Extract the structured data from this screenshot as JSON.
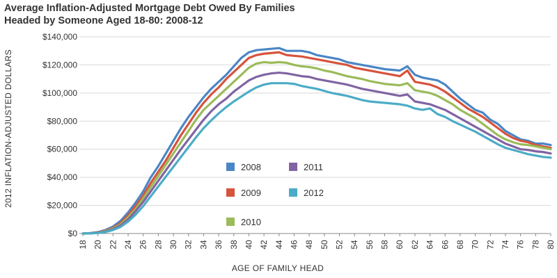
{
  "title_line1": "Average Inflation-Adjusted Mortgage Debt Owed By Families",
  "title_line2": "Headed by Someone Aged 18-80: 2008-12",
  "chart_data": {
    "type": "line",
    "title": "Average Inflation-Adjusted Mortgage Debt Owed By Families Headed by Someone Aged 18-80: 2008-12",
    "xlabel": "AGE OF FAMILY HEAD",
    "ylabel": "2012 INFLATION-ADJUSTED DOLLARS",
    "xlim": [
      18,
      80
    ],
    "ylim": [
      0,
      140000
    ],
    "x_ticks": [
      "18",
      "20",
      "22",
      "24",
      "26",
      "28",
      "30",
      "32",
      "34",
      "36",
      "38",
      "40",
      "42",
      "44",
      "46",
      "48",
      "50",
      "52",
      "54",
      "56",
      "58",
      "60",
      "62",
      "64",
      "66",
      "68",
      "70",
      "72",
      "74",
      "76",
      "78",
      "80"
    ],
    "y_ticks": [
      {
        "value": 0,
        "label": "$0"
      },
      {
        "value": 20000,
        "label": "$20,000"
      },
      {
        "value": 40000,
        "label": "$40,000"
      },
      {
        "value": 60000,
        "label": "$60,000"
      },
      {
        "value": 80000,
        "label": "$80,000"
      },
      {
        "value": 100000,
        "label": "$100,000"
      },
      {
        "value": 120000,
        "label": "$120,000"
      },
      {
        "value": 140000,
        "label": "$140,000"
      }
    ],
    "grid": "horizontal",
    "legend_position": "bottom-center",
    "x": [
      18,
      19,
      20,
      21,
      22,
      23,
      24,
      25,
      26,
      27,
      28,
      29,
      30,
      31,
      32,
      33,
      34,
      35,
      36,
      37,
      38,
      39,
      40,
      41,
      42,
      43,
      44,
      45,
      46,
      47,
      48,
      49,
      50,
      51,
      52,
      53,
      54,
      55,
      56,
      57,
      58,
      59,
      60,
      61,
      62,
      63,
      64,
      65,
      66,
      67,
      68,
      69,
      70,
      71,
      72,
      73,
      74,
      75,
      76,
      77,
      78,
      79,
      80
    ],
    "series": [
      {
        "name": "2008",
        "color": "#4a86c5",
        "values": [
          0,
          300,
          1000,
          2500,
          5000,
          9000,
          15000,
          22000,
          30000,
          40000,
          48000,
          57000,
          66000,
          75000,
          83000,
          90000,
          97000,
          103000,
          108000,
          113000,
          119000,
          125000,
          129000,
          130500,
          131000,
          131500,
          132000,
          130000,
          130000,
          130000,
          129000,
          127000,
          126000,
          125000,
          124000,
          122000,
          121000,
          120000,
          119000,
          118000,
          117000,
          116500,
          116000,
          119000,
          113000,
          111000,
          110000,
          109000,
          106000,
          101000,
          96000,
          92000,
          88000,
          86000,
          81000,
          78000,
          73000,
          70000,
          67000,
          66000,
          64000,
          64000,
          63000
        ]
      },
      {
        "name": "2009",
        "color": "#d6533c",
        "values": [
          0,
          200,
          800,
          2000,
          4000,
          7500,
          13000,
          19500,
          27000,
          36000,
          44000,
          52000,
          61000,
          70000,
          78000,
          86000,
          93000,
          99000,
          104000,
          110000,
          115000,
          120000,
          125000,
          127000,
          128000,
          128500,
          129000,
          127000,
          126500,
          126000,
          125000,
          124000,
          123000,
          122000,
          121000,
          120000,
          118000,
          117000,
          116000,
          115000,
          114000,
          113000,
          112000,
          116000,
          108000,
          107000,
          106000,
          104000,
          101000,
          97000,
          93000,
          89000,
          86000,
          83000,
          79000,
          75000,
          71000,
          68000,
          66000,
          65000,
          63000,
          62000,
          61000
        ]
      },
      {
        "name": "2010",
        "color": "#9bbb59",
        "values": [
          0,
          150,
          600,
          1700,
          3500,
          6500,
          11500,
          17500,
          25000,
          33000,
          41000,
          49000,
          57000,
          65000,
          73000,
          81000,
          88000,
          93000,
          98000,
          103000,
          108000,
          113000,
          118000,
          121000,
          122000,
          121500,
          122000,
          121500,
          120000,
          119000,
          118500,
          117500,
          116000,
          115000,
          113500,
          112000,
          111000,
          110000,
          108500,
          107500,
          106500,
          106000,
          105500,
          107000,
          102000,
          101000,
          100000,
          98000,
          95000,
          92000,
          88000,
          85000,
          82000,
          78000,
          74000,
          70000,
          67000,
          65000,
          63500,
          63000,
          62000,
          61000,
          60000
        ]
      },
      {
        "name": "2011",
        "color": "#8064a2",
        "values": [
          0,
          100,
          500,
          1400,
          3000,
          5700,
          10000,
          16000,
          22500,
          30000,
          37500,
          45000,
          52500,
          60000,
          67000,
          74000,
          81000,
          87000,
          92000,
          96000,
          101000,
          105000,
          109000,
          111500,
          113000,
          114000,
          114500,
          114000,
          113000,
          112000,
          111500,
          110000,
          109000,
          108000,
          107000,
          106000,
          104500,
          103000,
          102000,
          101000,
          100000,
          99000,
          98000,
          99000,
          94000,
          93000,
          92000,
          90000,
          88000,
          85000,
          82000,
          79000,
          76000,
          73000,
          70000,
          67000,
          64000,
          62000,
          60000,
          59500,
          58500,
          58000,
          57000
        ]
      },
      {
        "name": "2012",
        "color": "#4bacc6",
        "values": [
          0,
          80,
          400,
          1100,
          2500,
          4700,
          8500,
          13500,
          19500,
          26500,
          33500,
          40500,
          47500,
          54500,
          61500,
          68500,
          75000,
          80500,
          85500,
          90000,
          94000,
          97500,
          101000,
          104000,
          106000,
          107000,
          107000,
          107000,
          106500,
          105000,
          104000,
          103000,
          101500,
          100000,
          99000,
          98000,
          96500,
          95000,
          94000,
          93500,
          93000,
          92500,
          92000,
          91000,
          89000,
          88000,
          89000,
          85000,
          83000,
          80000,
          77500,
          75000,
          72500,
          69500,
          66500,
          63500,
          61000,
          59500,
          58000,
          56500,
          55500,
          54500,
          54000
        ]
      }
    ]
  },
  "legend": [
    {
      "label": "2008",
      "color": "#4a86c5"
    },
    {
      "label": "2011",
      "color": "#8064a2"
    },
    {
      "label": "2009",
      "color": "#d6533c"
    },
    {
      "label": "2012",
      "color": "#4bacc6"
    },
    {
      "label": "2010",
      "color": "#9bbb59"
    }
  ]
}
